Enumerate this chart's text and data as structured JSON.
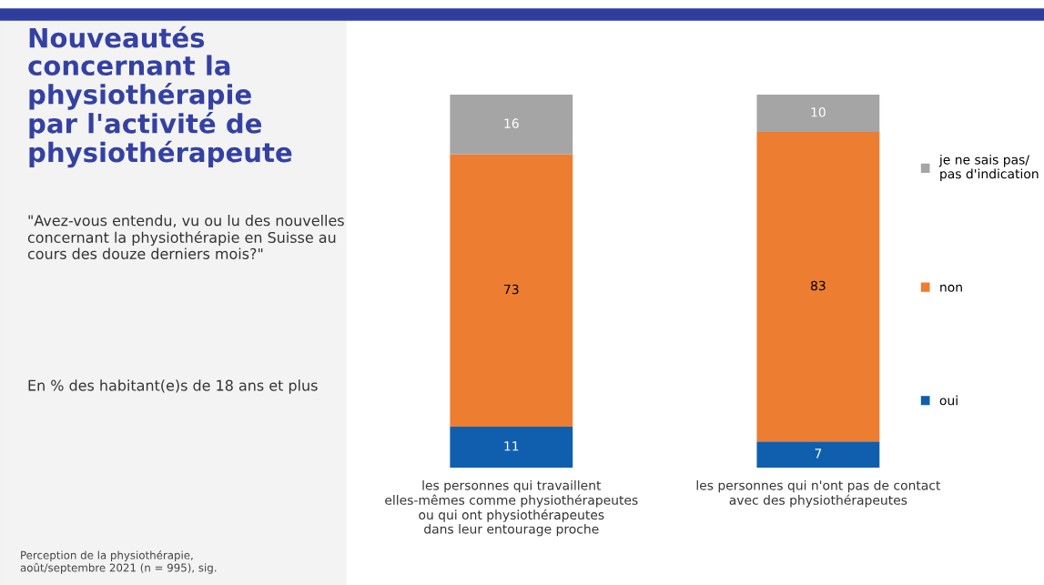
{
  "chart_data": {
    "type": "bar",
    "stacked": true,
    "data_labels": true,
    "legend": "right",
    "title": "Nouveautés\nconcernant la\nphysiothérapie\npar l'activité de\nphysiothérapeute",
    "subtitle": "\"Avez-vous entendu, vu ou lu des nouvelles\nconcernant la physiothérapie en Suisse au\ncours des douze derniers mois?\"",
    "annotations": [
      "En % des habitant(e)s de 18 ans et plus",
      "Perception de la physiothérapie,\naoût/septembre 2021 (n = 995), sig."
    ],
    "categories": [
      "les personnes qui travaillent\nelles-mêmes comme physiothérapeutes\nou qui ont physiothérapeutes\ndans leur entourage proche",
      "les personnes qui n'ont pas de contact\navec des physiothérapeutes"
    ],
    "series": [
      {
        "name": "oui",
        "color": "#0f5fae",
        "values": [
          11,
          7
        ]
      },
      {
        "name": "non",
        "color": "#ed7d31",
        "values": [
          73,
          83
        ]
      },
      {
        "name": "je ne sais pas/\npas d'indication",
        "color": "#a5a5a5",
        "values": [
          16,
          10
        ]
      }
    ]
  }
}
